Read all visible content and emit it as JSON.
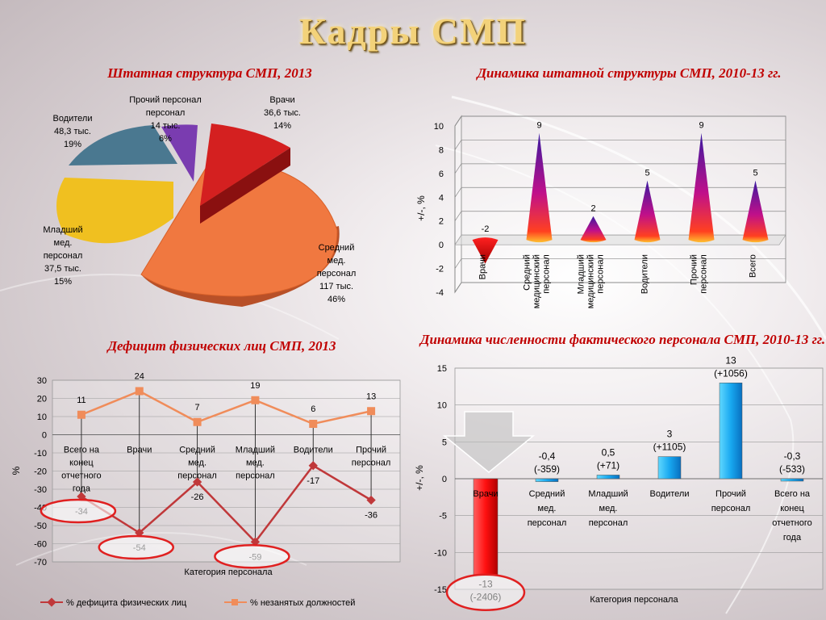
{
  "title": "Кадры СМП",
  "colors": {
    "title": "#f3d27a",
    "section_title": "#c00000",
    "deficit": "#c0383a",
    "vacancy": "#f08c5a"
  },
  "chart_data": [
    {
      "type": "pie",
      "title": "Штатная структура СМП, 2013",
      "slices": [
        {
          "label": "Врачи",
          "value_text": "36,6 тыс.",
          "percent_text": "14%",
          "value": 36.6,
          "percent": 14,
          "color": "#d42020"
        },
        {
          "label": "Средний мед. персонал",
          "value_text": "117 тыс.",
          "percent_text": "46%",
          "value": 117,
          "percent": 46,
          "color": "#f07840"
        },
        {
          "label": "Младший мед. персонал",
          "value_text": "37,5 тыс.",
          "percent_text": "15%",
          "value": 37.5,
          "percent": 15,
          "color": "#f0c020"
        },
        {
          "label": "Водители",
          "value_text": "48,3 тыс.",
          "percent_text": "19%",
          "value": 48.3,
          "percent": 19,
          "color": "#4a7890"
        },
        {
          "label": "Прочий персонал",
          "value_text": "14 тыс.",
          "percent_text": "6%",
          "value": 14,
          "percent": 6,
          "color": "#7a3cb0"
        }
      ]
    },
    {
      "type": "bar",
      "title": "Динамика штатной структуры СМП, 2010-13 гг.",
      "ylabel": "+/-, %",
      "ylim": [
        -4,
        10
      ],
      "yticks": [
        -4,
        -2,
        0,
        2,
        4,
        6,
        8,
        10
      ],
      "categories": [
        "Врачи",
        "Средний медицинский персонал",
        "Младший медицинский персонал",
        "Водители",
        "Прочий персонал",
        "Всего"
      ],
      "values": [
        -2,
        9,
        2,
        5,
        9,
        5
      ]
    },
    {
      "type": "line",
      "title": "Дефицит физических лиц СМП, 2013",
      "xlabel": "Категория персонала",
      "ylabel": "%",
      "ylim": [
        -70,
        30
      ],
      "yticks": [
        -70,
        -60,
        -50,
        -40,
        -30,
        -20,
        -10,
        0,
        10,
        20,
        30
      ],
      "categories": [
        "Всего на конец отчетного года",
        "Врачи",
        "Средний мед. персонал",
        "Младший мед. персонал",
        "Водители",
        "Прочий персонал"
      ],
      "series": [
        {
          "name": "% дефицита физических лиц",
          "values": [
            -34,
            -54,
            -26,
            -59,
            -17,
            -36
          ],
          "color": "#c0383a"
        },
        {
          "name": "% незанятых должностей",
          "values": [
            11,
            24,
            7,
            19,
            6,
            13
          ],
          "color": "#f08c5a"
        }
      ]
    },
    {
      "type": "bar",
      "title": "Динамика численности фактического персонала СМП, 2010-13 гг.",
      "xlabel": "Категория персонала",
      "ylabel": "+/-, %",
      "ylim": [
        -15,
        15
      ],
      "yticks": [
        -15,
        -10,
        -5,
        0,
        5,
        10,
        15
      ],
      "categories": [
        "Врачи",
        "Средний мед. персонал",
        "Младший мед. персонал",
        "Водители",
        "Прочий персонал",
        "Всего на конец отчетного года"
      ],
      "values": [
        -13,
        -0.4,
        0.5,
        3,
        13,
        -0.3
      ],
      "value_labels": [
        "-13",
        "-0,4",
        "0,5",
        "3",
        "13",
        "-0,3"
      ],
      "abs_labels": [
        "(-2406)",
        "(-359)",
        "(+71)",
        "(+1105)",
        "(+1056)",
        "(-533)"
      ]
    }
  ]
}
